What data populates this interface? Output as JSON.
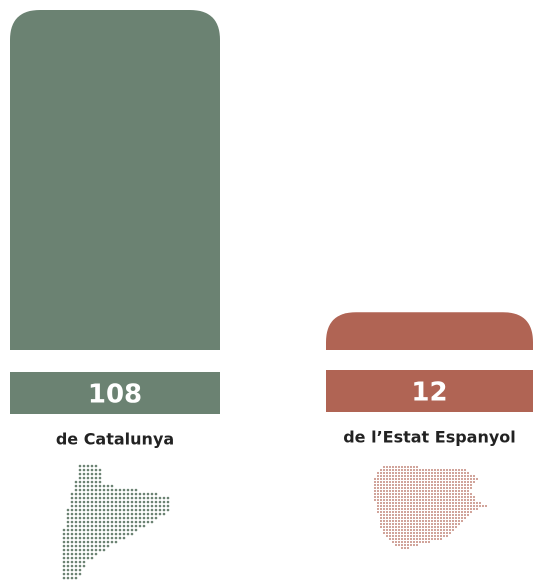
{
  "chart_data": {
    "type": "bar",
    "categories": [
      "de Catalunya",
      "de l’Estat Espanyol"
    ],
    "values": [
      108,
      12
    ],
    "colors": [
      "#6b8272",
      "#b06454"
    ]
  }
}
